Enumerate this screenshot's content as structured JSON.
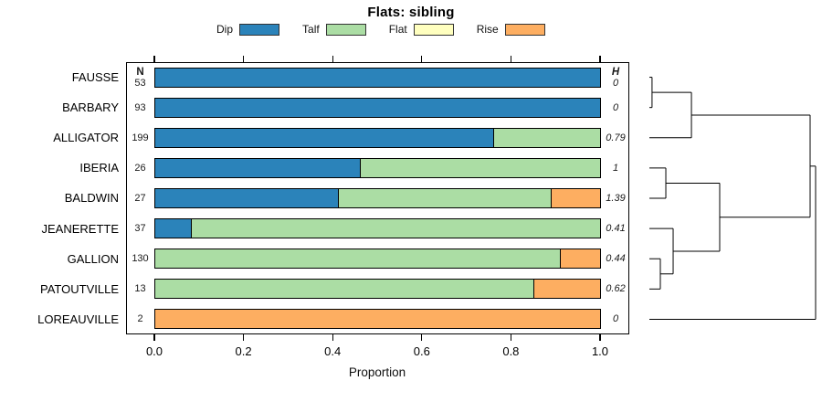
{
  "title": "Flats: sibling",
  "xlabel": "Proportion",
  "legend": {
    "items": [
      {
        "label": "Dip",
        "color": "#2B83BA"
      },
      {
        "label": "Talf",
        "color": "#ABDDA4"
      },
      {
        "label": "Flat",
        "color": "#FFFFBF"
      },
      {
        "label": "Rise",
        "color": "#FDAE61"
      }
    ]
  },
  "columns": {
    "n_header": "N",
    "h_header": "H"
  },
  "chart_data": {
    "type": "bar",
    "stacked": true,
    "orientation": "horizontal",
    "title": "Flats: sibling",
    "xlabel": "Proportion",
    "xlim": [
      0,
      1
    ],
    "legend_position": "top",
    "series_keys": [
      "Dip",
      "Talf",
      "Flat",
      "Rise"
    ],
    "categories": [
      "FAUSSE",
      "BARBARY",
      "ALLIGATOR",
      "IBERIA",
      "BALDWIN",
      "JEANERETTE",
      "GALLION",
      "PATOUTVILLE",
      "LOREAUVILLE"
    ],
    "x_ticks": [
      {
        "value": 0.0,
        "label": "0.0"
      },
      {
        "value": 0.2,
        "label": "0.2"
      },
      {
        "value": 0.4,
        "label": "0.4"
      },
      {
        "value": 0.6,
        "label": "0.6"
      },
      {
        "value": 0.8,
        "label": "0.8"
      },
      {
        "value": 1.0,
        "label": "1.0"
      }
    ],
    "rows": [
      {
        "name": "FAUSSE",
        "n": "53",
        "h": "0",
        "segments": [
          {
            "key": "Dip",
            "value": 1.0
          }
        ]
      },
      {
        "name": "BARBARY",
        "n": "93",
        "h": "0",
        "segments": [
          {
            "key": "Dip",
            "value": 1.0
          }
        ]
      },
      {
        "name": "ALLIGATOR",
        "n": "199",
        "h": "0.79",
        "segments": [
          {
            "key": "Dip",
            "value": 0.76
          },
          {
            "key": "Talf",
            "value": 0.24
          }
        ]
      },
      {
        "name": "IBERIA",
        "n": "26",
        "h": "1",
        "segments": [
          {
            "key": "Dip",
            "value": 0.46
          },
          {
            "key": "Talf",
            "value": 0.54
          }
        ]
      },
      {
        "name": "BALDWIN",
        "n": "27",
        "h": "1.39",
        "segments": [
          {
            "key": "Dip",
            "value": 0.41
          },
          {
            "key": "Talf",
            "value": 0.48
          },
          {
            "key": "Rise",
            "value": 0.11
          }
        ]
      },
      {
        "name": "JEANERETTE",
        "n": "37",
        "h": "0.41",
        "segments": [
          {
            "key": "Dip",
            "value": 0.08
          },
          {
            "key": "Talf",
            "value": 0.92
          }
        ]
      },
      {
        "name": "GALLION",
        "n": "130",
        "h": "0.44",
        "segments": [
          {
            "key": "Talf",
            "value": 0.91
          },
          {
            "key": "Rise",
            "value": 0.09
          }
        ]
      },
      {
        "name": "PATOUTVILLE",
        "n": "13",
        "h": "0.62",
        "segments": [
          {
            "key": "Talf",
            "value": 0.85
          },
          {
            "key": "Rise",
            "value": 0.15
          }
        ]
      },
      {
        "name": "LOREAUVILLE",
        "n": "2",
        "h": "0",
        "segments": [
          {
            "key": "Rise",
            "value": 1.0
          }
        ]
      }
    ],
    "dendrogram": {
      "join": 1.0,
      "children": [
        {
          "join": 0.967,
          "children": [
            {
              "join": 0.253,
              "children": [
                {
                  "join": 0.016,
                  "children": [
                    "FAUSSE",
                    "BARBARY"
                  ]
                },
                "ALLIGATOR"
              ]
            },
            {
              "join": 0.423,
              "children": [
                {
                  "join": 0.099,
                  "children": [
                    "IBERIA",
                    "BALDWIN"
                  ]
                },
                {
                  "join": 0.143,
                  "children": [
                    "JEANERETTE",
                    {
                      "join": 0.066,
                      "children": [
                        "GALLION",
                        "PATOUTVILLE"
                      ]
                    }
                  ]
                }
              ]
            }
          ]
        },
        "LOREAUVILLE"
      ]
    }
  }
}
